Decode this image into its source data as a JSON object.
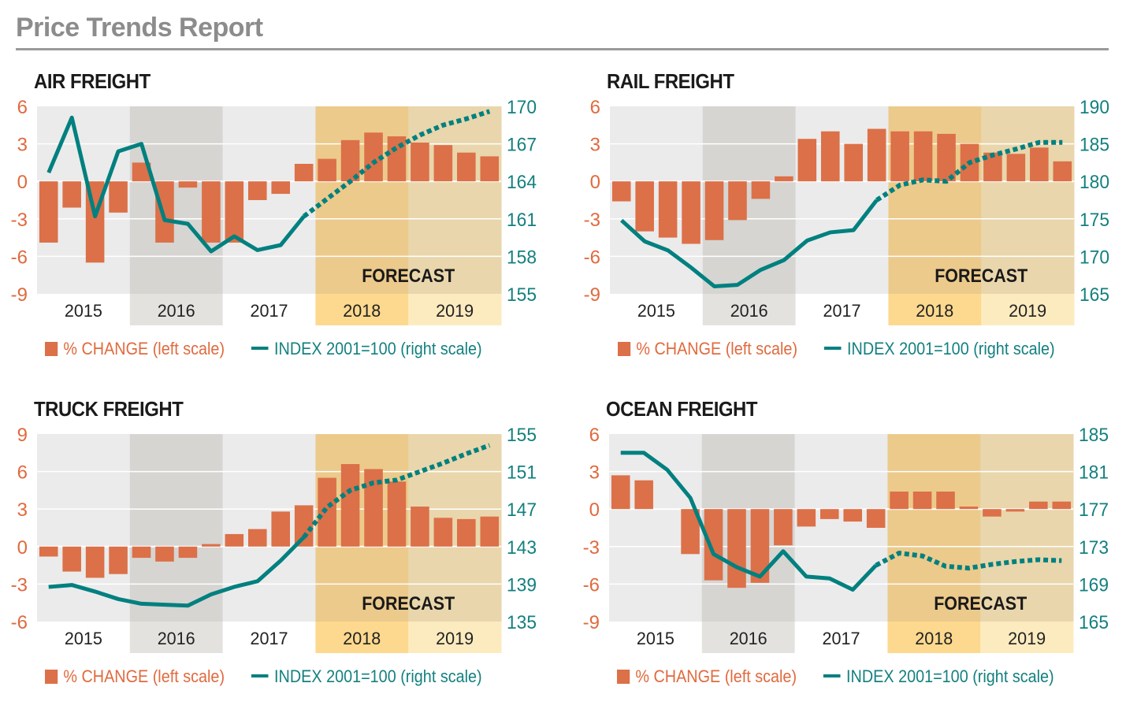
{
  "title": "Price Trends Report",
  "colors": {
    "bar": "#dc7048",
    "line": "#00807f",
    "left_axis": "#e06a3e",
    "right_axis": "#13807f"
  },
  "legend": {
    "bar_label": "% CHANGE (left scale)",
    "line_label": "INDEX 2001=100 (right scale)"
  },
  "forecast_label": "FORECAST",
  "chart_data": [
    {
      "type": "bar+line",
      "title": "AIR FREIGHT",
      "categories": [
        "2015",
        "2016",
        "2017",
        "2018",
        "2019"
      ],
      "quarters_per_year": 4,
      "forecast_years": [
        "2018",
        "2019"
      ],
      "left_ylim": [
        -9,
        6
      ],
      "left_ticks": [
        "6",
        "3",
        "0",
        "-3",
        "-6",
        "-9"
      ],
      "right_ylim": [
        155,
        170
      ],
      "right_ticks": [
        "170",
        "167",
        "164",
        "161",
        "158",
        "155"
      ],
      "bar_values": [
        -4.9,
        -2.1,
        -6.5,
        -2.5,
        1.5,
        -4.9,
        -0.5,
        -4.9,
        -4.9,
        -1.5,
        -1.0,
        1.4,
        1.8,
        3.3,
        3.9,
        3.6,
        3.1,
        2.9,
        2.3,
        2.0
      ],
      "line_values": [
        164.7,
        169.1,
        161.2,
        166.4,
        167.0,
        160.9,
        160.6,
        158.4,
        159.6,
        158.5,
        158.9,
        161.2,
        162.6,
        164.0,
        165.5,
        166.7,
        167.7,
        168.5,
        169.0,
        169.6
      ]
    },
    {
      "type": "bar+line",
      "title": "RAIL FREIGHT",
      "categories": [
        "2015",
        "2016",
        "2017",
        "2018",
        "2019"
      ],
      "quarters_per_year": 4,
      "forecast_years": [
        "2018",
        "2019"
      ],
      "left_ylim": [
        -9,
        6
      ],
      "left_ticks": [
        "6",
        "3",
        "0",
        "-3",
        "-6",
        "-9"
      ],
      "right_ylim": [
        165,
        190
      ],
      "right_ticks": [
        "190",
        "185",
        "180",
        "175",
        "170",
        "165"
      ],
      "bar_values": [
        -1.6,
        -4.0,
        -4.5,
        -5.0,
        -4.7,
        -3.1,
        -1.4,
        0.4,
        3.4,
        4.0,
        3.0,
        4.2,
        4.0,
        4.0,
        3.8,
        3.0,
        2.3,
        2.2,
        2.7,
        1.6
      ],
      "line_values": [
        174.8,
        172.0,
        170.8,
        168.5,
        166.0,
        166.2,
        168.2,
        169.5,
        172.1,
        173.2,
        173.5,
        177.5,
        179.5,
        180.2,
        180.0,
        182.5,
        183.5,
        184.3,
        185.2,
        185.2
      ]
    },
    {
      "type": "bar+line",
      "title": "TRUCK FREIGHT",
      "categories": [
        "2015",
        "2016",
        "2017",
        "2018",
        "2019"
      ],
      "quarters_per_year": 4,
      "forecast_years": [
        "2018",
        "2019"
      ],
      "left_ylim": [
        -6,
        9
      ],
      "left_ticks": [
        "9",
        "6",
        "3",
        "0",
        "-3",
        "-6"
      ],
      "right_ylim": [
        135,
        155
      ],
      "right_ticks": [
        "155",
        "151",
        "147",
        "143",
        "139",
        "135"
      ],
      "bar_values": [
        -0.8,
        -2.0,
        -2.5,
        -2.2,
        -0.9,
        -1.2,
        -0.9,
        0.2,
        1.0,
        1.4,
        2.8,
        3.3,
        5.5,
        6.6,
        6.2,
        5.2,
        3.2,
        2.3,
        2.2,
        2.4
      ],
      "line_values": [
        138.7,
        138.9,
        138.2,
        137.4,
        136.9,
        136.8,
        136.7,
        137.9,
        138.7,
        139.3,
        141.5,
        144.0,
        147.2,
        149.0,
        149.8,
        150.1,
        151.0,
        151.9,
        152.9,
        153.8
      ]
    },
    {
      "type": "bar+line",
      "title": "OCEAN FREIGHT",
      "categories": [
        "2015",
        "2016",
        "2017",
        "2018",
        "2019"
      ],
      "quarters_per_year": 4,
      "forecast_years": [
        "2018",
        "2019"
      ],
      "left_ylim": [
        -9,
        6
      ],
      "left_ticks": [
        "6",
        "3",
        "0",
        "-3",
        "-6",
        "-9"
      ],
      "right_ylim": [
        165,
        185
      ],
      "right_ticks": [
        "185",
        "181",
        "177",
        "173",
        "169",
        "165"
      ],
      "bar_values": [
        2.7,
        2.3,
        0,
        -3.6,
        -5.7,
        -6.3,
        -5.9,
        -2.9,
        -1.4,
        -0.8,
        -1.0,
        -1.5,
        1.4,
        1.4,
        1.4,
        0.2,
        -0.6,
        -0.2,
        0.6,
        0.6
      ],
      "line_values": [
        183.0,
        183.0,
        181.2,
        178.2,
        172.2,
        170.8,
        169.8,
        172.5,
        169.8,
        169.6,
        168.4,
        171.0,
        172.3,
        172.0,
        170.9,
        170.7,
        171.1,
        171.4,
        171.6,
        171.5
      ]
    }
  ]
}
